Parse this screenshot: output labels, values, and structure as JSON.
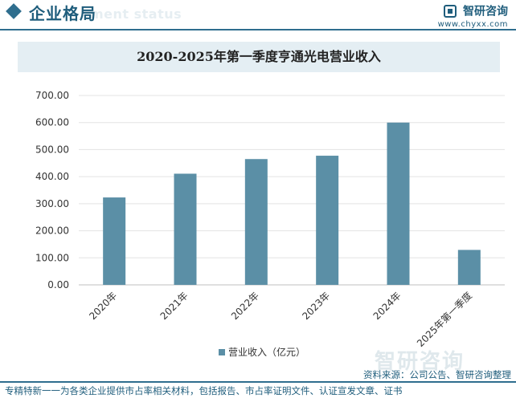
{
  "header": {
    "title": "企业格局",
    "watermark": "ment status",
    "brand_name": "智研咨询",
    "brand_url": "www.chyxx.com"
  },
  "chart_data": {
    "type": "bar",
    "title": "2020-2025年第一季度亨通光电营业收入",
    "categories": [
      "2020年",
      "2021年",
      "2022年",
      "2023年",
      "2024年",
      "2025年第一季度"
    ],
    "series": [
      {
        "name": "营业收入（亿元）",
        "values": [
          323.1,
          410.9,
          465.0,
          477.4,
          599.9,
          129.2
        ]
      }
    ],
    "ylim": [
      0,
      700
    ],
    "yticks": [
      "0.00",
      "100.00",
      "200.00",
      "300.00",
      "400.00",
      "500.00",
      "600.00",
      "700.00"
    ],
    "xlabel": "",
    "ylabel": "",
    "grid": true,
    "legend_position": "bottom",
    "bar_color": "#5b8fa6"
  },
  "footer": {
    "source": "资料来源：公司公告、智研咨询整理",
    "note": "专精特新一一为各类企业提供市占率相关材料，包括报告、市占率证明文件、认证宣发文章、证书",
    "watermark": "智研咨询"
  }
}
